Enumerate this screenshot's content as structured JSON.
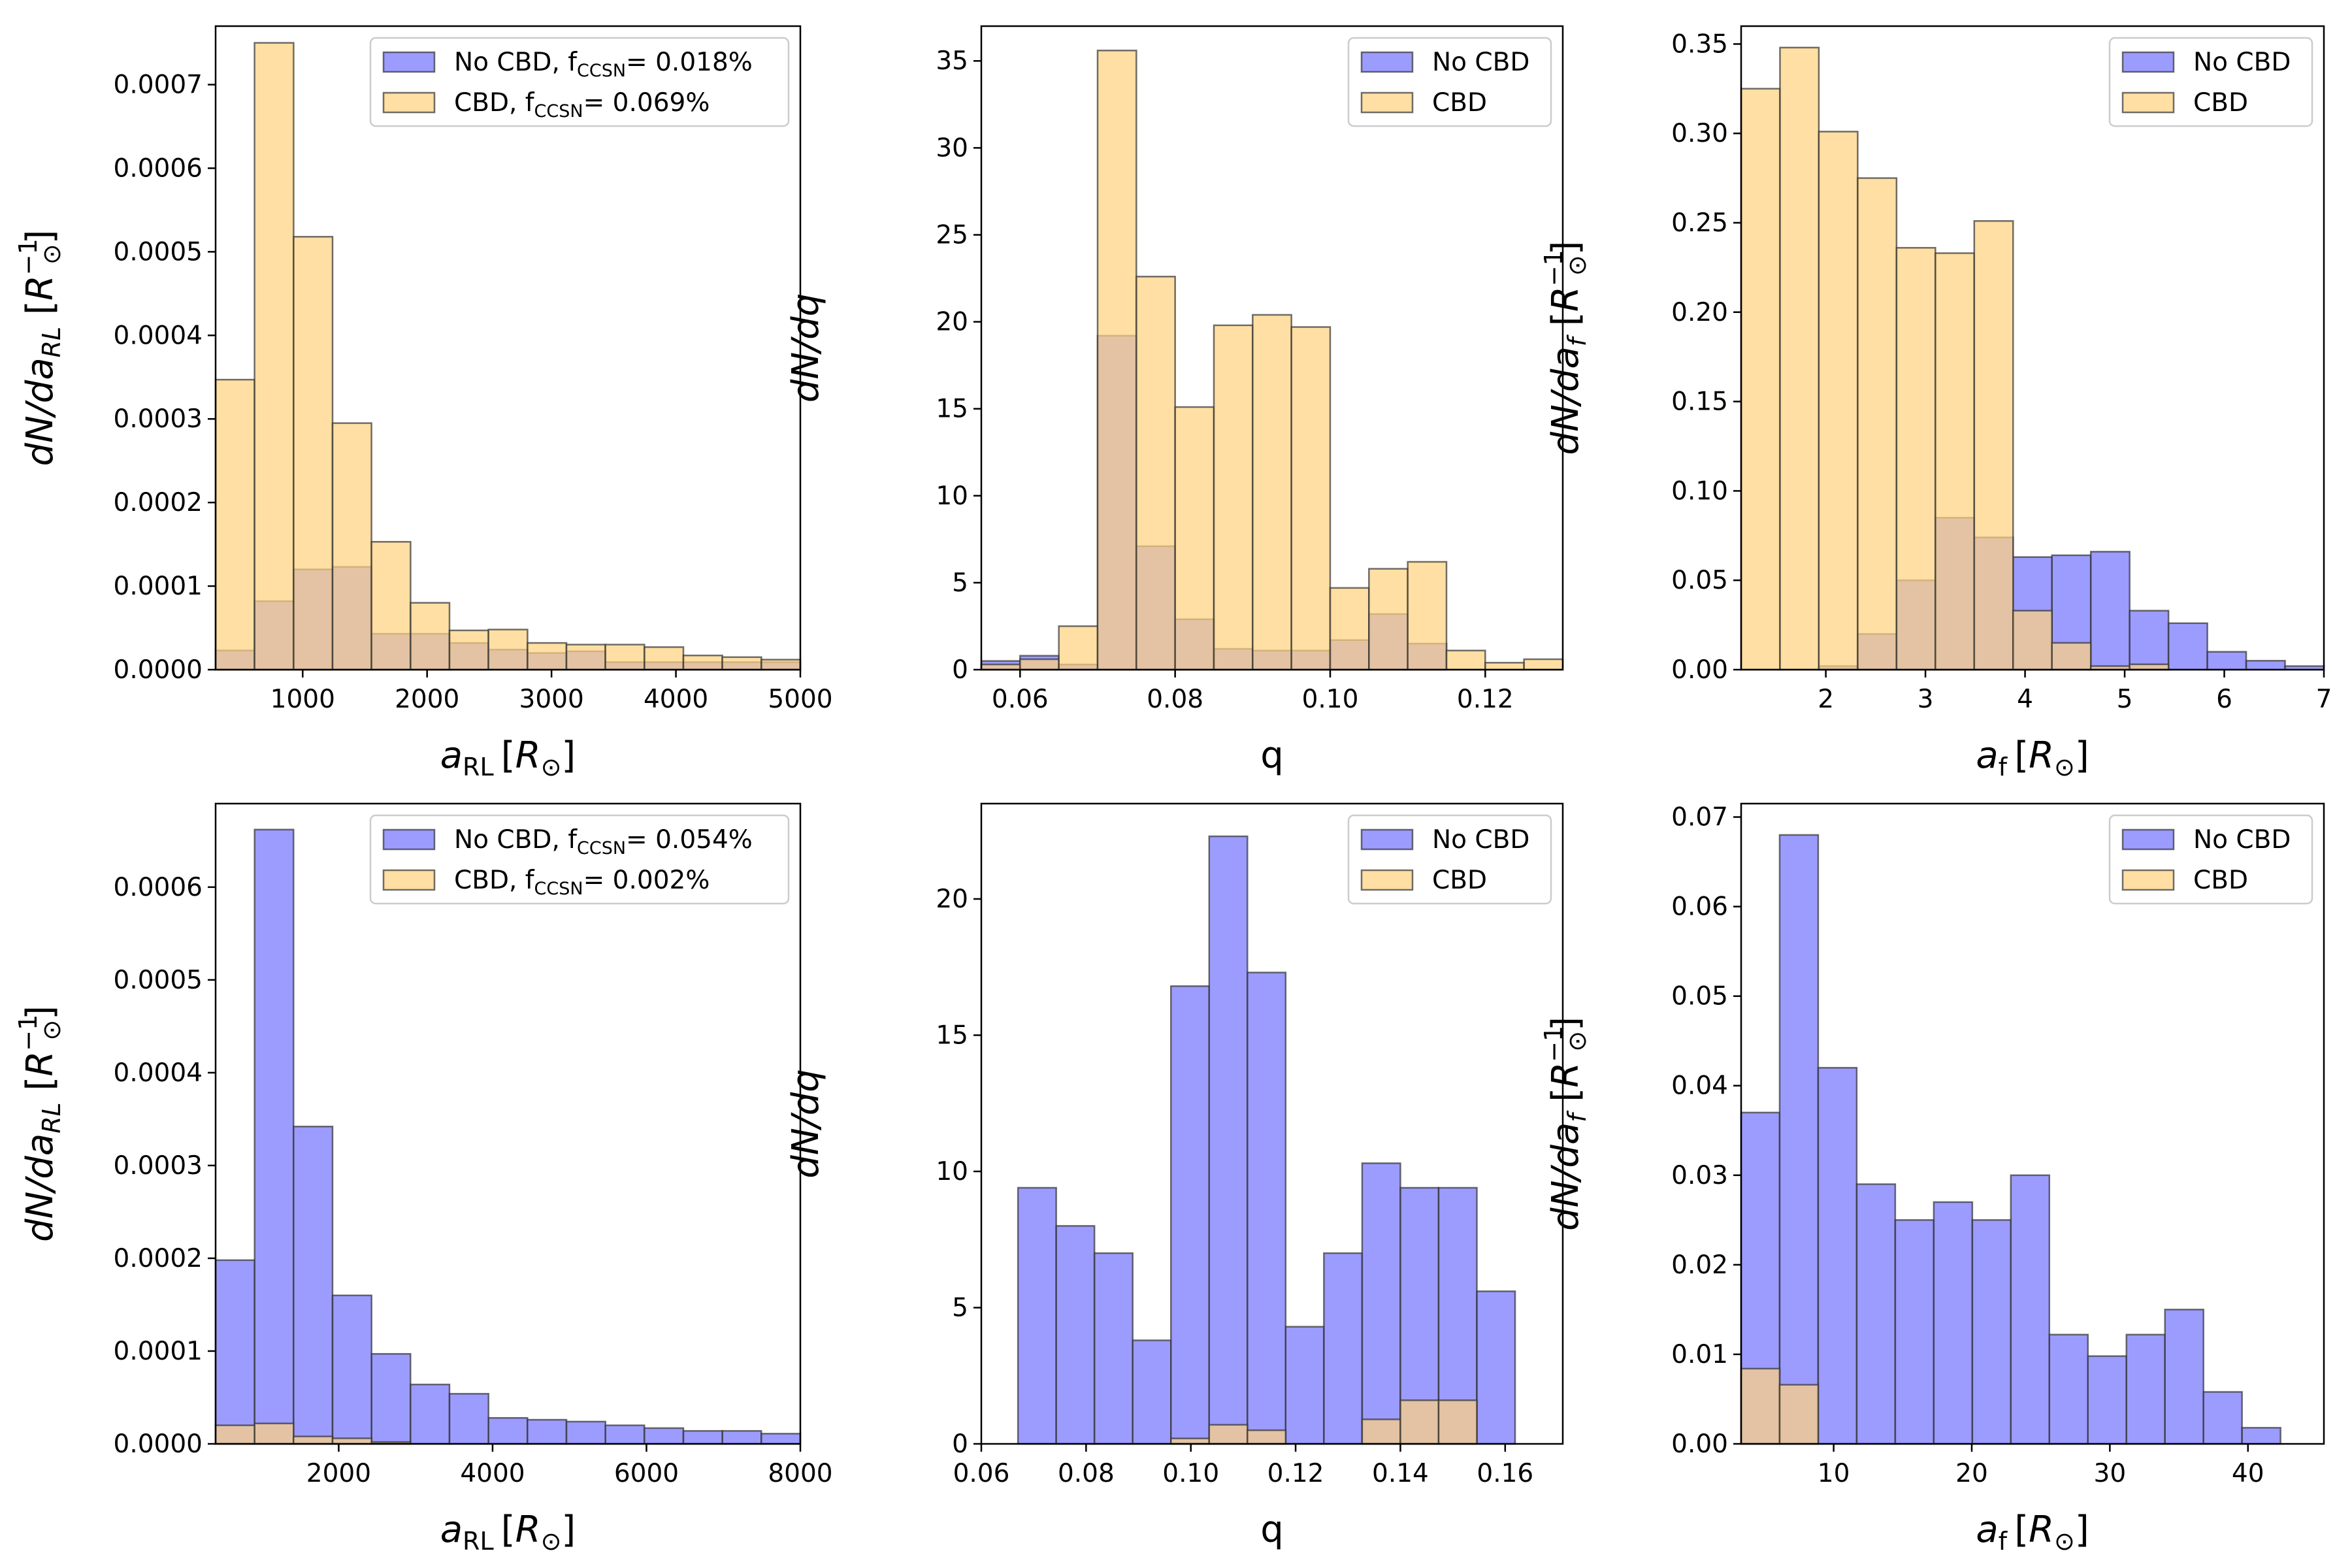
{
  "figure": {
    "series_names": [
      "No CBD",
      "CBD"
    ]
  },
  "chart_data": [
    {
      "type": "bar",
      "title": "",
      "xlabel": {
        "base": "a",
        "sub": "RL",
        "unit": "R",
        "unit_sub": "⊙"
      },
      "ylabel": {
        "base": "dN/da",
        "sub": "RL",
        "unit": "R",
        "unit_sup": "−1",
        "unit_sub": "⊙"
      },
      "xlim": [
        300,
        5000
      ],
      "ylim": [
        0,
        0.00077
      ],
      "xticks": [
        1000,
        2000,
        3000,
        4000,
        5000
      ],
      "xtick_labels": [
        "1000",
        "2000",
        "3000",
        "4000",
        "5000"
      ],
      "yticks": [
        0,
        0.0001,
        0.0002,
        0.0003,
        0.0004,
        0.0005,
        0.0006,
        0.0007
      ],
      "ytick_labels": [
        "0.0000",
        "0.0001",
        "0.0002",
        "0.0003",
        "0.0004",
        "0.0005",
        "0.0006",
        "0.0007"
      ],
      "bin_edges": [
        300,
        613,
        927,
        1240,
        1553,
        1867,
        2180,
        2493,
        2807,
        3120,
        3433,
        3747,
        4060,
        4373,
        4687,
        5000
      ],
      "legend": {
        "position": "top-right",
        "entries": [
          {
            "text": "No CBD, f",
            "sub": "CCSN",
            "value": "= 0.018%"
          },
          {
            "text": "CBD, f",
            "sub": "CCSN",
            "value": "= 0.069%"
          }
        ]
      },
      "series": [
        {
          "name": "No CBD",
          "color": "#8080ff",
          "values": [
            2.3e-05,
            8.2e-05,
            0.00012,
            0.000123,
            4.3e-05,
            4.3e-05,
            3.2e-05,
            2.4e-05,
            2e-05,
            2.2e-05,
            9e-06,
            9e-06,
            9e-06,
            9e-06,
            9e-06
          ]
        },
        {
          "name": "CBD",
          "color": "#ffd27f",
          "values": [
            0.000347,
            0.00075,
            0.000518,
            0.000295,
            0.000153,
            8e-05,
            4.7e-05,
            4.8e-05,
            3.2e-05,
            3e-05,
            3e-05,
            2.7e-05,
            1.7e-05,
            1.5e-05,
            1.2e-05
          ]
        }
      ]
    },
    {
      "type": "bar",
      "title": "",
      "xlabel": {
        "base": "q"
      },
      "ylabel": {
        "base": "dN/dq"
      },
      "xlim": [
        0.055,
        0.13
      ],
      "ylim": [
        0,
        37
      ],
      "xticks": [
        0.06,
        0.08,
        0.1,
        0.12
      ],
      "xtick_labels": [
        "0.06",
        "0.08",
        "0.10",
        "0.12"
      ],
      "yticks": [
        0,
        5,
        10,
        15,
        20,
        25,
        30,
        35
      ],
      "ytick_labels": [
        "0",
        "5",
        "10",
        "15",
        "20",
        "25",
        "30",
        "35"
      ],
      "bin_edges": [
        0.055,
        0.06,
        0.065,
        0.07,
        0.075,
        0.08,
        0.085,
        0.09,
        0.095,
        0.1,
        0.105,
        0.11,
        0.115,
        0.12,
        0.125,
        0.13
      ],
      "legend": {
        "position": "top-right",
        "entries": [
          {
            "text": "No CBD"
          },
          {
            "text": "CBD"
          }
        ]
      },
      "series": [
        {
          "name": "No CBD",
          "color": "#8080ff",
          "values": [
            0.5,
            0.8,
            0.3,
            19.2,
            7.1,
            2.9,
            1.2,
            1.1,
            1.1,
            1.7,
            3.2,
            1.5,
            0,
            0,
            0
          ]
        },
        {
          "name": "CBD",
          "color": "#ffd27f",
          "values": [
            0.3,
            0.6,
            2.5,
            35.6,
            22.6,
            15.1,
            19.8,
            20.4,
            19.7,
            4.7,
            5.8,
            6.2,
            1.1,
            0.4,
            0.6
          ]
        }
      ]
    },
    {
      "type": "bar",
      "title": "",
      "xlabel": {
        "base": "a",
        "sub": "f",
        "unit": "R",
        "unit_sub": "⊙"
      },
      "ylabel": {
        "base": "dN/da",
        "sub": "f",
        "unit": "R",
        "unit_sup": "−1",
        "unit_sub": "⊙"
      },
      "xlim": [
        1.15,
        7.0
      ],
      "ylim": [
        0,
        0.36
      ],
      "xticks": [
        2,
        3,
        4,
        5,
        6,
        7
      ],
      "xtick_labels": [
        "2",
        "3",
        "4",
        "5",
        "6",
        "7"
      ],
      "yticks": [
        0,
        0.05,
        0.1,
        0.15,
        0.2,
        0.25,
        0.3,
        0.35
      ],
      "ytick_labels": [
        "0.00",
        "0.05",
        "0.10",
        "0.15",
        "0.20",
        "0.25",
        "0.30",
        "0.35"
      ],
      "bin_edges": [
        1.15,
        1.54,
        1.93,
        2.32,
        2.71,
        3.1,
        3.49,
        3.88,
        4.27,
        4.66,
        5.05,
        5.44,
        5.83,
        6.22,
        6.61,
        7.0
      ],
      "legend": {
        "position": "top-right",
        "entries": [
          {
            "text": "No CBD"
          },
          {
            "text": "CBD"
          }
        ]
      },
      "series": [
        {
          "name": "No CBD",
          "color": "#8080ff",
          "values": [
            0,
            0,
            0.002,
            0.02,
            0.05,
            0.085,
            0.074,
            0.063,
            0.064,
            0.066,
            0.033,
            0.026,
            0.01,
            0.005,
            0.002
          ]
        },
        {
          "name": "CBD",
          "color": "#ffd27f",
          "values": [
            0.325,
            0.348,
            0.301,
            0.275,
            0.236,
            0.233,
            0.251,
            0.033,
            0.015,
            0.002,
            0.003,
            0,
            0,
            0,
            0
          ]
        }
      ]
    },
    {
      "type": "bar",
      "title": "",
      "xlabel": {
        "base": "a",
        "sub": "RL",
        "unit": "R",
        "unit_sub": "⊙"
      },
      "ylabel": {
        "base": "dN/da",
        "sub": "RL",
        "unit": "R",
        "unit_sup": "−1",
        "unit_sub": "⊙"
      },
      "xlim": [
        400,
        8000
      ],
      "ylim": [
        0,
        0.00069
      ],
      "xticks": [
        2000,
        4000,
        6000,
        8000
      ],
      "xtick_labels": [
        "2000",
        "4000",
        "6000",
        "8000"
      ],
      "yticks": [
        0,
        0.0001,
        0.0002,
        0.0003,
        0.0004,
        0.0005,
        0.0006
      ],
      "ytick_labels": [
        "0.0000",
        "0.0001",
        "0.0002",
        "0.0003",
        "0.0004",
        "0.0005",
        "0.0006"
      ],
      "bin_edges": [
        400,
        907,
        1413,
        1920,
        2427,
        2933,
        3440,
        3947,
        4453,
        4960,
        5467,
        5973,
        6480,
        6987,
        7493,
        8000
      ],
      "legend": {
        "position": "top-right",
        "entries": [
          {
            "text": "No CBD, f",
            "sub": "CCSN",
            "value": "= 0.054%"
          },
          {
            "text": "CBD, f",
            "sub": "CCSN",
            "value": "= 0.002%"
          }
        ]
      },
      "series": [
        {
          "name": "No CBD",
          "color": "#8080ff",
          "values": [
            0.000198,
            0.000662,
            0.000342,
            0.00016,
            9.7e-05,
            6.4e-05,
            5.4e-05,
            2.8e-05,
            2.6e-05,
            2.4e-05,
            2e-05,
            1.7e-05,
            1.4e-05,
            1.4e-05,
            1.1e-05
          ]
        },
        {
          "name": "CBD",
          "color": "#ffd27f",
          "values": [
            2e-05,
            2.2e-05,
            8e-06,
            6e-06,
            2e-06,
            0,
            0,
            0,
            0,
            0,
            0,
            0,
            0,
            0,
            0
          ]
        }
      ]
    },
    {
      "type": "bar",
      "title": "",
      "xlabel": {
        "base": "q"
      },
      "ylabel": {
        "base": "dN/dq"
      },
      "xlim": [
        0.06,
        0.171
      ],
      "ylim": [
        0,
        23.5
      ],
      "xticks": [
        0.06,
        0.08,
        0.1,
        0.12,
        0.14,
        0.16
      ],
      "xtick_labels": [
        "0.06",
        "0.08",
        "0.10",
        "0.12",
        "0.14",
        "0.16"
      ],
      "yticks": [
        0,
        5,
        10,
        15,
        20
      ],
      "ytick_labels": [
        "0",
        "5",
        "10",
        "15",
        "20"
      ],
      "bin_edges": [
        0.067,
        0.0743,
        0.0816,
        0.0889,
        0.0962,
        0.1035,
        0.1108,
        0.1181,
        0.1254,
        0.1327,
        0.14,
        0.1473,
        0.1546,
        0.1619
      ],
      "legend": {
        "position": "top-right",
        "entries": [
          {
            "text": "No CBD"
          },
          {
            "text": "CBD"
          }
        ]
      },
      "series": [
        {
          "name": "No CBD",
          "color": "#8080ff",
          "values": [
            9.4,
            8.0,
            7.0,
            3.8,
            16.8,
            22.3,
            17.3,
            4.3,
            7.0,
            10.3,
            9.4,
            9.4,
            5.6
          ]
        },
        {
          "name": "CBD",
          "color": "#ffd27f",
          "values": [
            0,
            0,
            0,
            0,
            0.2,
            0.7,
            0.5,
            0,
            0,
            0.9,
            1.6,
            1.6,
            0
          ]
        }
      ]
    },
    {
      "type": "bar",
      "title": "",
      "xlabel": {
        "base": "a",
        "sub": "f",
        "unit": "R",
        "unit_sub": "⊙"
      },
      "ylabel": {
        "base": "dN/da",
        "sub": "f",
        "unit": "R",
        "unit_sup": "−1",
        "unit_sub": "⊙"
      },
      "xlim": [
        3.3,
        45.5
      ],
      "ylim": [
        0,
        0.0715
      ],
      "xticks": [
        10,
        20,
        30,
        40
      ],
      "xtick_labels": [
        "10",
        "20",
        "30",
        "40"
      ],
      "yticks": [
        0,
        0.01,
        0.02,
        0.03,
        0.04,
        0.05,
        0.06,
        0.07
      ],
      "ytick_labels": [
        "0.00",
        "0.01",
        "0.02",
        "0.03",
        "0.04",
        "0.05",
        "0.06",
        "0.07"
      ],
      "bin_edges": [
        3.3,
        6.09,
        8.88,
        11.67,
        14.46,
        17.25,
        20.04,
        22.83,
        25.62,
        28.41,
        31.2,
        33.99,
        36.78,
        39.57,
        42.36
      ],
      "legend": {
        "position": "top-right",
        "entries": [
          {
            "text": "No CBD"
          },
          {
            "text": "CBD"
          }
        ]
      },
      "series": [
        {
          "name": "No CBD",
          "color": "#8080ff",
          "values": [
            0.037,
            0.068,
            0.042,
            0.029,
            0.025,
            0.027,
            0.025,
            0.03,
            0.0122,
            0.0098,
            0.0122,
            0.015,
            0.0058,
            0.0018
          ]
        },
        {
          "name": "CBD",
          "color": "#ffd27f",
          "values": [
            0.0084,
            0.0066,
            0,
            0,
            0,
            0,
            0,
            0,
            0,
            0,
            0,
            0,
            0,
            0
          ]
        }
      ]
    }
  ]
}
